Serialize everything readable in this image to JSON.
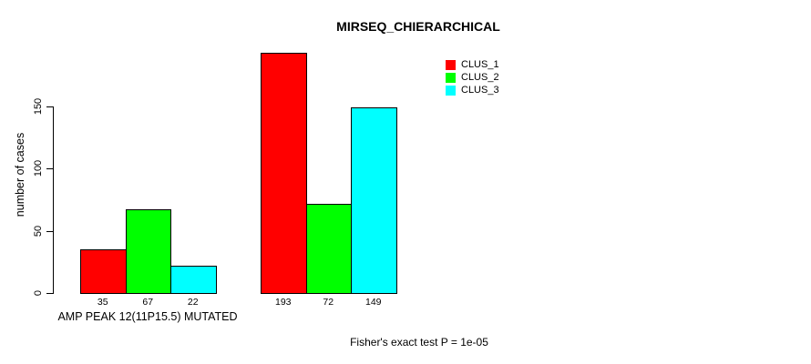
{
  "chart_data": {
    "type": "bar",
    "title": "MIRSEQ_CHIERARCHICAL",
    "ylabel": "number of cases",
    "xlabel": "AMP PEAK 12(11P15.5) MUTATED",
    "annotation": "Fisher's exact test P = 1e-05",
    "ylim": [
      0,
      150
    ],
    "yticks": [
      0,
      50,
      100,
      150
    ],
    "grid": false,
    "legend_position": "top-right",
    "groups": [
      "AMP PEAK 12(11P15.5) MUTATED",
      ""
    ],
    "series": [
      {
        "name": "CLUS_1",
        "color": "#ff0000",
        "values": [
          35,
          193
        ]
      },
      {
        "name": "CLUS_2",
        "color": "#00ff00",
        "values": [
          67,
          72
        ]
      },
      {
        "name": "CLUS_3",
        "color": "#00ffff",
        "values": [
          22,
          149
        ]
      }
    ],
    "bar_value_labels": [
      [
        35,
        67,
        22
      ],
      [
        193,
        72,
        149
      ]
    ],
    "axis_color": "#000000",
    "background_color": "#ffffff"
  }
}
